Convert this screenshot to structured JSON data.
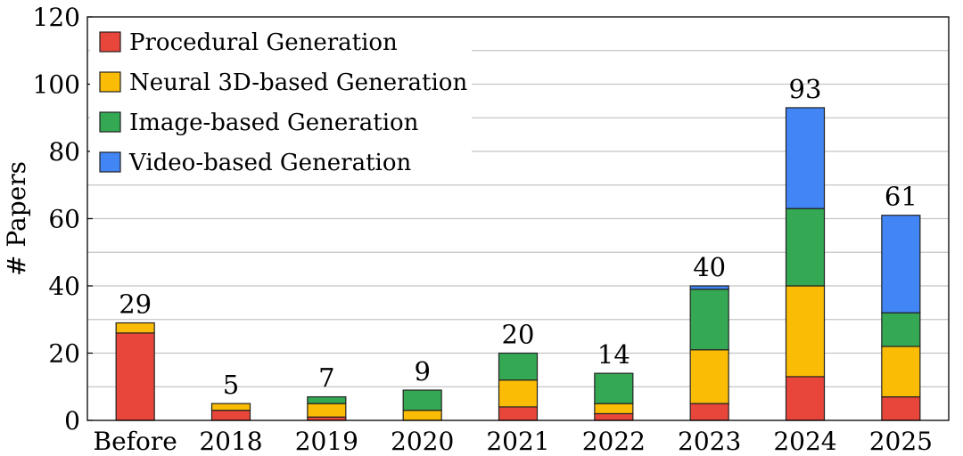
{
  "chart_data": {
    "type": "bar",
    "stacked": true,
    "title": "",
    "xlabel": "",
    "ylabel": "# Papers",
    "ylim": [
      0,
      120
    ],
    "yticks": [
      0,
      20,
      40,
      60,
      80,
      100,
      120
    ],
    "grid": "horizontal",
    "legend_position": "top-left",
    "categories": [
      "Before",
      "2018",
      "2019",
      "2020",
      "2021",
      "2022",
      "2023",
      "2024",
      "2025"
    ],
    "series": [
      {
        "name": "Procedural Generation",
        "color": "#e8463a",
        "values": [
          26,
          3,
          1,
          0,
          4,
          2,
          5,
          13,
          7
        ]
      },
      {
        "name": "Neural 3D-based Generation",
        "color": "#fbbc05",
        "values": [
          3,
          2,
          4,
          3,
          8,
          3,
          16,
          27,
          15
        ]
      },
      {
        "name": "Image-based Generation",
        "color": "#34a853",
        "values": [
          0,
          0,
          2,
          6,
          8,
          9,
          18,
          23,
          10
        ]
      },
      {
        "name": "Video-based Generation",
        "color": "#4285f4",
        "values": [
          0,
          0,
          0,
          0,
          0,
          0,
          1,
          30,
          29
        ]
      }
    ],
    "totals": [
      29,
      5,
      7,
      9,
      20,
      14,
      40,
      93,
      61
    ]
  }
}
